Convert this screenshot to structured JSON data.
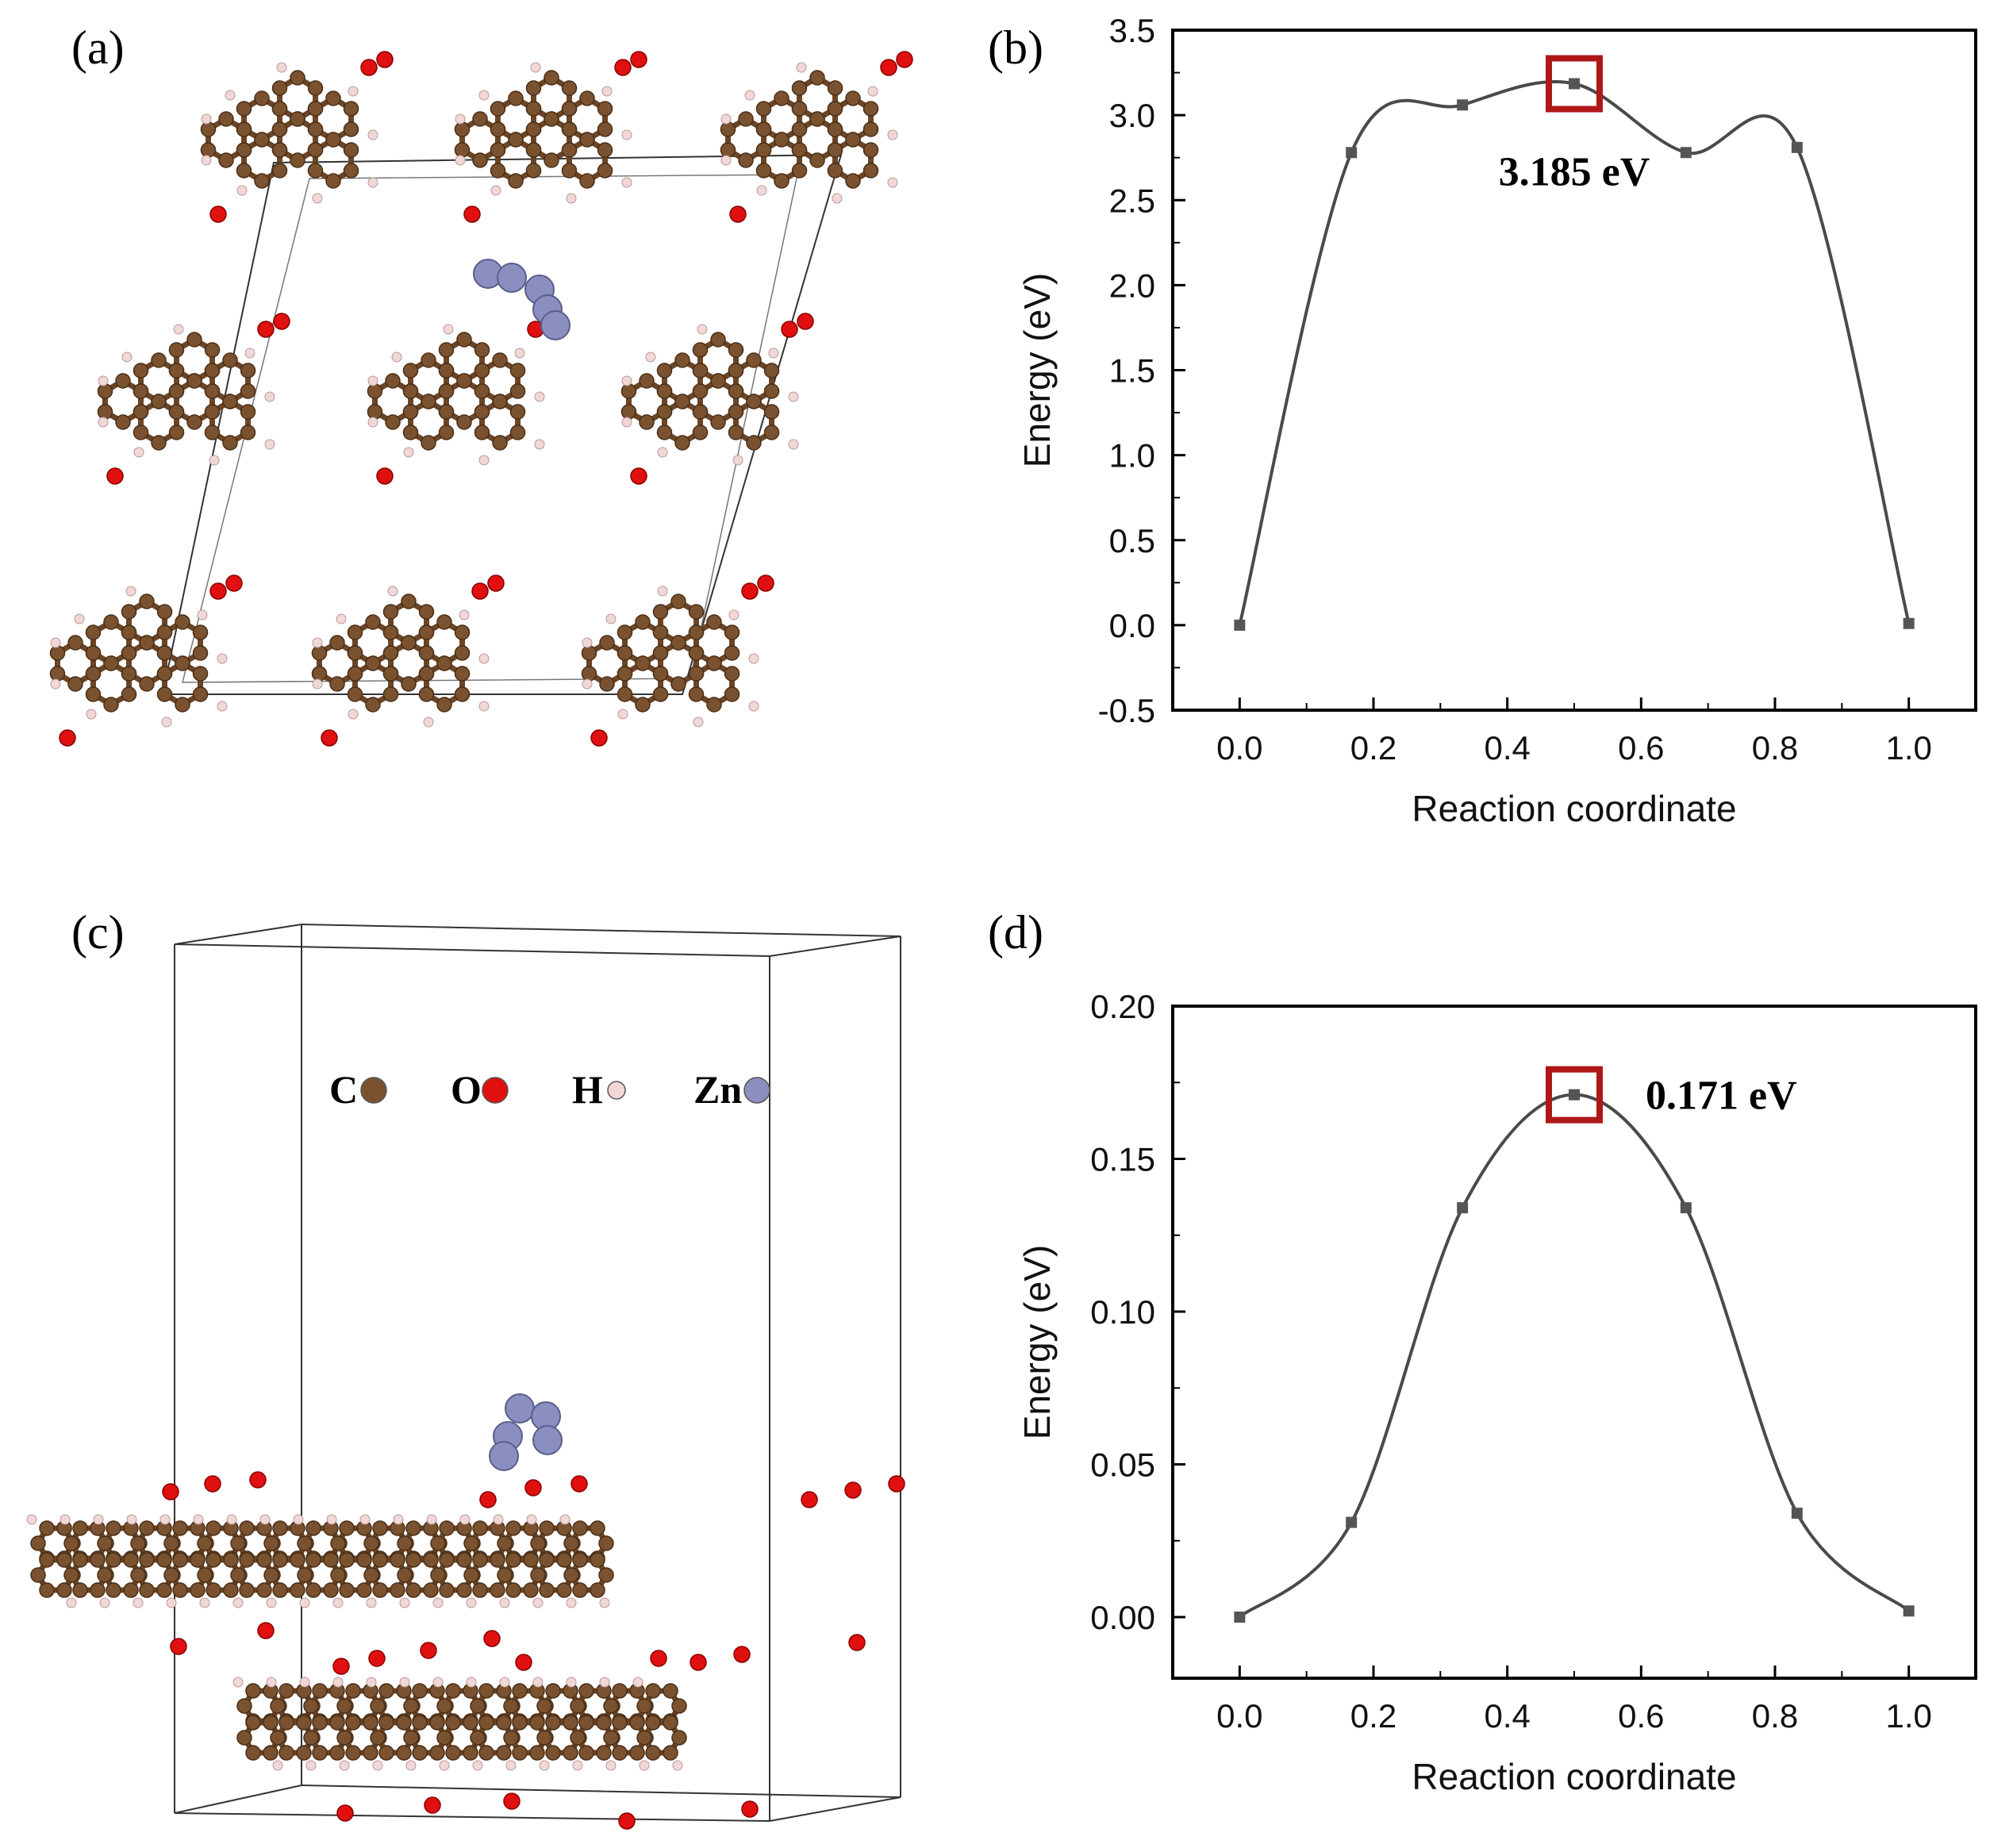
{
  "panels": {
    "a": {
      "label": "(a)"
    },
    "b": {
      "label": "(b)"
    },
    "c": {
      "label": "(c)"
    },
    "d": {
      "label": "(d)"
    }
  },
  "legend": {
    "items": [
      {
        "symbol": "C",
        "color": "#7a5230"
      },
      {
        "symbol": "O",
        "color": "#e01010"
      },
      {
        "symbol": "H",
        "color": "#f2d7d7"
      },
      {
        "symbol": "Zn",
        "color": "#8a8fc0"
      }
    ]
  },
  "colors": {
    "line": "#4a4a4a",
    "marker": "#555555",
    "highlight": "#b01818",
    "carbon": "#7a5230",
    "oxygen": "#e01010",
    "hydrogen": "#f2d7d7",
    "zinc": "#8a8fc0"
  },
  "chart_data": [
    {
      "type": "line",
      "panel": "b",
      "xlabel": "Reaction coordinate",
      "ylabel": "Energy (eV)",
      "xlim": [
        -0.1,
        1.1
      ],
      "ylim": [
        -0.5,
        3.5
      ],
      "xticks": [
        "0.0",
        "0.2",
        "0.4",
        "0.6",
        "0.8",
        "1.0"
      ],
      "yticks": [
        "-0.5",
        "0.0",
        "0.5",
        "1.0",
        "1.5",
        "2.0",
        "2.5",
        "3.0",
        "3.5"
      ],
      "x": [
        0.0,
        0.167,
        0.333,
        0.5,
        0.667,
        0.833,
        1.0
      ],
      "y": [
        0.0,
        2.78,
        3.06,
        3.185,
        2.78,
        2.81,
        0.01
      ],
      "highlight_index": 3,
      "annotation": "3.185 eV"
    },
    {
      "type": "line",
      "panel": "d",
      "xlabel": "Reaction coordinate",
      "ylabel": "Energy (eV)",
      "xlim": [
        -0.1,
        1.1
      ],
      "ylim": [
        -0.02,
        0.2
      ],
      "xticks": [
        "0.0",
        "0.2",
        "0.4",
        "0.6",
        "0.8",
        "1.0"
      ],
      "yticks": [
        "0.00",
        "0.05",
        "0.10",
        "0.15",
        "0.20"
      ],
      "x": [
        0.0,
        0.167,
        0.333,
        0.5,
        0.667,
        0.833,
        1.0
      ],
      "y": [
        0.0,
        0.031,
        0.134,
        0.171,
        0.134,
        0.034,
        0.002
      ],
      "highlight_index": 3,
      "annotation": "0.171 eV"
    }
  ]
}
